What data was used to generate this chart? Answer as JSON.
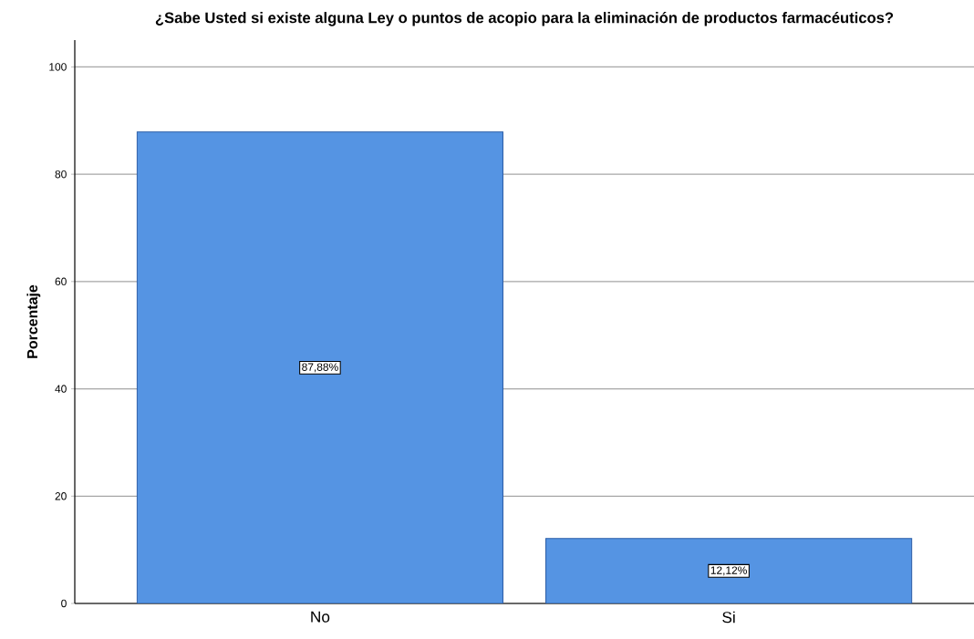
{
  "chart_data": {
    "type": "bar",
    "title": "¿Sabe Usted si existe alguna Ley o puntos de acopio para la eliminación de productos farmacéuticos?",
    "ylabel": "Porcentaje",
    "categories": [
      "No",
      "Si"
    ],
    "values": [
      87.88,
      12.12
    ],
    "value_labels": [
      "87,88%",
      "12,12%"
    ],
    "color": "#5594e3",
    "ylim": [
      0,
      105
    ],
    "yticks": [
      0,
      20,
      40,
      60,
      80,
      100
    ],
    "grid": "y"
  }
}
